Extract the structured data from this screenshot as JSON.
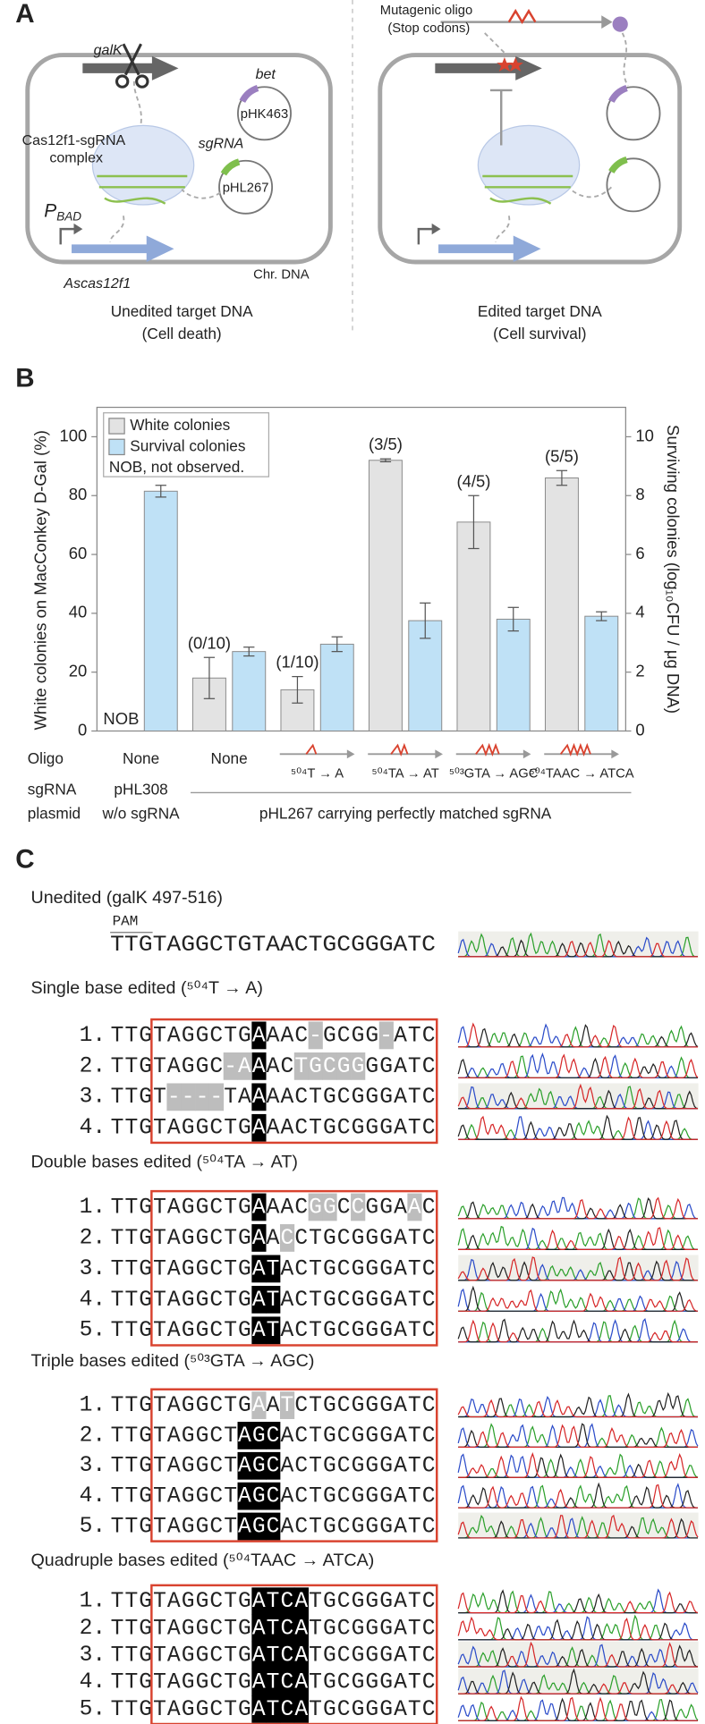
{
  "panel_a": {
    "label": "A",
    "galk": "galK",
    "bet": "bet",
    "phk463": "pHK463",
    "sgrna": "sgRNA",
    "phl267": "pHL267",
    "complex": [
      "Cas12f1-sgRNA",
      "complex"
    ],
    "pbad": {
      "main": "P",
      "sub": "BAD"
    },
    "ascas": "Ascas12f1",
    "chr": "Chr. DNA",
    "oligo": [
      "Mutagenic oligo",
      "(Stop codons)"
    ],
    "left_caption": [
      "Unedited target DNA",
      "(Cell death)"
    ],
    "right_caption": [
      "Edited target DNA",
      "(Cell survival)"
    ]
  },
  "chart_data": {
    "type": "bar",
    "label": "B",
    "y_label": "White colonies on MacConkey D-Gal (%)",
    "y2_label": "Surviving colonies (log₁₀CFU / μg DNA)",
    "categories": [
      "None",
      "None",
      "⁵⁰⁴T → A",
      "⁵⁰⁴TA → AT",
      "⁵⁰³GTA → AGC",
      "⁵⁰⁴TAAC → ATCA"
    ],
    "series": [
      {
        "name": "White colonies",
        "color": "#e3e3e3",
        "values": [
          0,
          18,
          14,
          92,
          71,
          86
        ],
        "errors": [
          null,
          7,
          4.5,
          0.5,
          9,
          2.5
        ],
        "bar_labels": [
          "NOB",
          "(0/10)",
          "(1/10)",
          "(3/5)",
          "(4/5)",
          "(5/5)"
        ]
      },
      {
        "name": "Survival colonies",
        "color": "#bfe1f6",
        "axis": "y2",
        "values": [
          8.15,
          2.7,
          2.95,
          3.75,
          3.8,
          3.9
        ],
        "errors": [
          0.2,
          0.15,
          0.25,
          0.6,
          0.4,
          0.15
        ]
      }
    ],
    "legend_note": "NOB, not observed.",
    "ylim": [
      0,
      110
    ],
    "yticks": [
      0,
      20,
      40,
      60,
      80,
      100
    ],
    "y2lim": [
      0,
      11
    ],
    "y2ticks": [
      0,
      2,
      4,
      6,
      8,
      10
    ],
    "row_labels": {
      "oligo": "Oligo",
      "plasmid": [
        "sgRNA",
        "plasmid"
      ]
    },
    "plasmids": {
      "control": [
        "pHL308",
        "w/o sgRNA"
      ],
      "test": "pHL267 carrying perfectly matched sgRNA"
    }
  },
  "panel_c": {
    "label": "C",
    "unedited": {
      "title": "Unedited (galK 497-516)",
      "pam": "PAM",
      "sequence": "TTGTAGGCTGTAACTGCGGGATC"
    },
    "groups": [
      {
        "title": "Single base edited (⁵⁰⁴T → A)",
        "rows": [
          {
            "number": "1.",
            "sequence": "TTGTAGGCTGAAAC-GCGG-ATC",
            "black": [
              10
            ],
            "gray": [
              14,
              19
            ]
          },
          {
            "number": "2.",
            "sequence": "TTGTAGGC-AAACTGCGGGGATC",
            "black": [
              10
            ],
            "gray": [
              8,
              9,
              13,
              14,
              15,
              16,
              17
            ]
          },
          {
            "number": "3.",
            "sequence": "TTGT----TAAAACTGCGGGATC",
            "black": [
              10
            ],
            "gray": [
              4,
              5,
              6,
              7
            ]
          },
          {
            "number": "4.",
            "sequence": "TTGTAGGCTGAAACTGCGGGATC",
            "black": [
              10
            ],
            "gray": []
          }
        ]
      },
      {
        "title": "Double bases edited (⁵⁰⁴TA → AT)",
        "rows": [
          {
            "number": "1.",
            "sequence": "TTGTAGGCTGAAACGGCCGGAAC",
            "black": [
              10
            ],
            "gray": [
              14,
              15,
              17,
              21
            ]
          },
          {
            "number": "2.",
            "sequence": "TTGTAGGCTGAACCTGCGGGATC",
            "black": [
              10
            ],
            "gray": [
              12
            ]
          },
          {
            "number": "3.",
            "sequence": "TTGTAGGCTGATACTGCGGGATC",
            "black": [
              10,
              11
            ],
            "gray": []
          },
          {
            "number": "4.",
            "sequence": "TTGTAGGCTGATACTGCGGGATC",
            "black": [
              10,
              11
            ],
            "gray": []
          },
          {
            "number": "5.",
            "sequence": "TTGTAGGCTGATACTGCGGGATC",
            "black": [
              10,
              11
            ],
            "gray": []
          }
        ]
      },
      {
        "title": "Triple bases edited (⁵⁰³GTA → AGC)",
        "rows": [
          {
            "number": "1.",
            "sequence": "TTGTAGGCTGAATCTGCGGGATC",
            "black": [],
            "gray": [
              10,
              12
            ]
          },
          {
            "number": "2.",
            "sequence": "TTGTAGGCTAGCACTGCGGGATC",
            "black": [
              9,
              10,
              11
            ],
            "gray": []
          },
          {
            "number": "3.",
            "sequence": "TTGTAGGCTAGCACTGCGGGATC",
            "black": [
              9,
              10,
              11
            ],
            "gray": []
          },
          {
            "number": "4.",
            "sequence": "TTGTAGGCTAGCACTGCGGGATC",
            "black": [
              9,
              10,
              11
            ],
            "gray": []
          },
          {
            "number": "5.",
            "sequence": "TTGTAGGCTAGCACTGCGGGATC",
            "black": [
              9,
              10,
              11
            ],
            "gray": []
          }
        ]
      },
      {
        "title": "Quadruple bases edited (⁵⁰⁴TAAC → ATCA)",
        "rows": [
          {
            "number": "1.",
            "sequence": "TTGTAGGCTGATCATGCGGGATC",
            "black": [
              10,
              11,
              12,
              13
            ],
            "gray": []
          },
          {
            "number": "2.",
            "sequence": "TTGTAGGCTGATCATGCGGGATC",
            "black": [
              10,
              11,
              12,
              13
            ],
            "gray": []
          },
          {
            "number": "3.",
            "sequence": "TTGTAGGCTGATCATGCGGGATC",
            "black": [
              10,
              11,
              12,
              13
            ],
            "gray": []
          },
          {
            "number": "4.",
            "sequence": "TTGTAGGCTGATCATGCGGGATC",
            "black": [
              10,
              11,
              12,
              13
            ],
            "gray": []
          },
          {
            "number": "5.",
            "sequence": "TTGTAGGCTGATCATGCGGGATC",
            "black": [
              10,
              11,
              12,
              13
            ],
            "gray": []
          }
        ]
      }
    ]
  }
}
